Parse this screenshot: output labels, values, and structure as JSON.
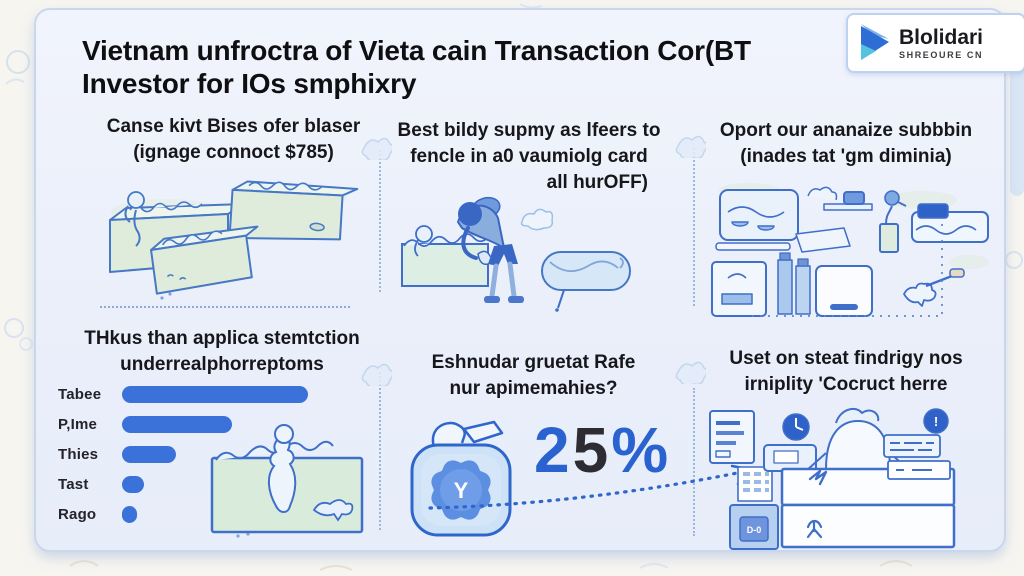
{
  "colors": {
    "accent_blue": "#2e66cc",
    "outline_blue": "#3f6fc9",
    "bar_blue": "#3a72d9",
    "card_bg": "#eef2fa",
    "light_green_fill": "#ddeadd",
    "light_blue_fill": "#cfe3f8"
  },
  "header": {
    "title_line1": "Vietnam unfroctra of Vieta cain Transaction Cor(BT",
    "title_line2": "Investor for IOs smphixry",
    "logo": {
      "name": "Blolidari",
      "subtitle": "SHREOURE CN",
      "icon": "triangle-play-logo-icon"
    }
  },
  "panels": {
    "top_left": {
      "line1": "Canse kivt Bises ofer blaser",
      "line2": "(ignage connoct $785)",
      "illustration": "three-hand-drawn-crates"
    },
    "top_middle": {
      "line1": "Best bildy supmy as lfeers to",
      "line2": "fencle in a0 vaumiolg card",
      "line3": "all hurOFF)",
      "illustration": "person-bending-between-crate-and-capsule"
    },
    "top_right": {
      "line1": "Oport our ananaize subbbin",
      "line2": "(inades tat 'gm diminia)",
      "illustration": "assorted-household-devices"
    },
    "bottom_left": {
      "line1": "THkus than applica stemtction",
      "line2": "underrealphorreptoms",
      "illustration": "crate-with-climbing-figure"
    },
    "bottom_middle": {
      "line1": "Eshnudar gruetat Rafe",
      "line2": "nur apimemahies?",
      "badge_letter": "Y",
      "stat": {
        "digit_blue": "2",
        "digit_dark": "5",
        "suffix": "%"
      },
      "illustration": "jug-with-seal-badge-and-rising-dotted-arrow"
    },
    "bottom_right": {
      "line1": "Uset on steat findrigy nos",
      "line2": "irniplity 'Cocruct herre",
      "alert_glyph": "!",
      "machine_label": "D-0",
      "illustration": "clerk-at-service-desk"
    }
  },
  "chart_data": {
    "type": "bar",
    "orientation": "horizontal",
    "title": "THkus than applica stemtction underrealphorreptoms",
    "categories": [
      "Tabee",
      "P,Ime",
      "Thies",
      "Tast",
      "Rago"
    ],
    "values": [
      100,
      59,
      29,
      12,
      8
    ],
    "xlim": [
      0,
      100
    ],
    "value_note": "bar lengths as percent of longest bar; axis unlabeled in source",
    "bar_color": "#3a72d9",
    "grid": false,
    "legend": false
  }
}
